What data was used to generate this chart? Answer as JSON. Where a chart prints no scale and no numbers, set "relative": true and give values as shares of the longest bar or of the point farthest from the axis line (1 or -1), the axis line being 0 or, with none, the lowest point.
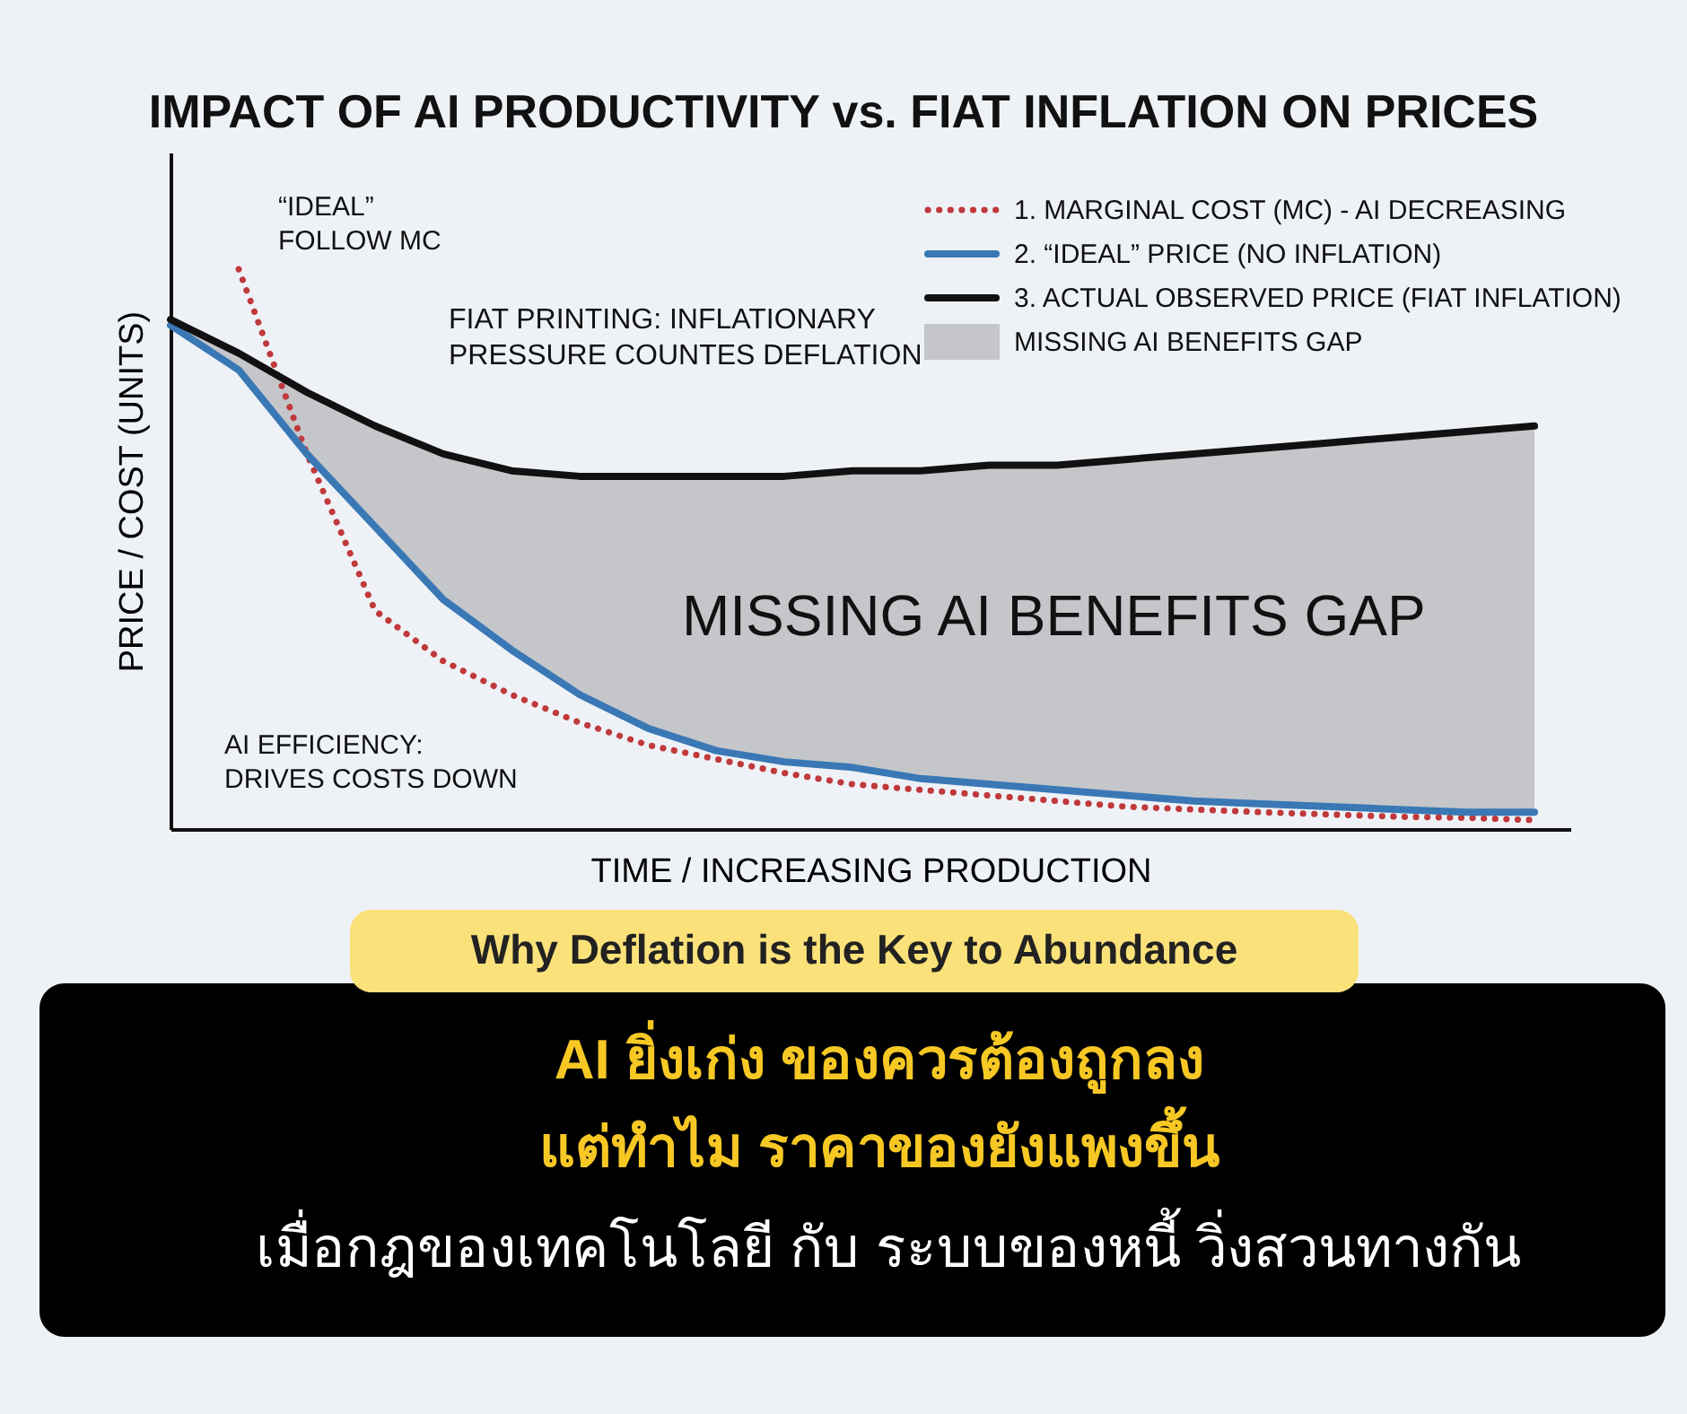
{
  "chart_data": {
    "type": "line",
    "relative": true,
    "title": "IMPACT OF AI PRODUCTIVITY vs. FIAT INFLATION ON PRICES",
    "subtitle": "Why Deflation is the Key to Abundance",
    "xlabel": "TIME / INCREASING PRODUCTION",
    "ylabel": "PRICE / COST (UNITS)",
    "categories": [
      null,
      null,
      null,
      null,
      null,
      null,
      null,
      null,
      null,
      null,
      null,
      null,
      null,
      null,
      null,
      null,
      null,
      null,
      null,
      null,
      null
    ],
    "legend": "top right",
    "grid": false,
    "marker": "none",
    "tick_labels": false,
    "series": [
      {
        "name": "1. MARGINAL COST (MC) - AI DECREASING",
        "color": "#c0393b",
        "line_style": "dotted",
        "values": [
          null,
          1.0,
          0.67,
          0.39,
          0.3,
          0.24,
          0.19,
          0.15,
          0.125,
          0.1,
          0.08,
          0.07,
          0.06,
          0.05,
          0.04,
          0.035,
          0.03,
          0.026,
          0.022,
          0.02,
          0.016
        ]
      },
      {
        "name": "2. “IDEAL” PRICE (NO INFLATION)",
        "color": "#3a78b5",
        "line_style": "solid",
        "values": [
          0.9,
          0.82,
          0.67,
          0.54,
          0.41,
          0.32,
          0.24,
          0.18,
          0.14,
          0.12,
          0.11,
          0.09,
          0.08,
          0.07,
          0.06,
          0.05,
          0.045,
          0.04,
          0.035,
          0.03,
          0.03
        ]
      },
      {
        "name": "3. ACTUAL OBSERVED PRICE (FIAT INFLATION)",
        "color": "#111111",
        "line_style": "solid",
        "values": [
          0.91,
          0.85,
          0.78,
          0.72,
          0.67,
          0.64,
          0.63,
          0.63,
          0.63,
          0.63,
          0.64,
          0.64,
          0.65,
          0.65,
          0.66,
          0.67,
          0.68,
          0.69,
          0.7,
          0.71,
          0.72
        ],
        "lower": [
          0.9,
          0.82,
          0.67,
          0.54,
          0.41,
          0.32,
          0.24,
          0.18,
          0.14,
          0.12,
          0.11,
          0.09,
          0.08,
          0.07,
          0.06,
          0.05,
          0.045,
          0.04,
          0.035,
          0.03,
          0.03
        ],
        "upper": [
          0.91,
          0.85,
          0.78,
          0.72,
          0.67,
          0.64,
          0.63,
          0.63,
          0.63,
          0.63,
          0.64,
          0.64,
          0.65,
          0.65,
          0.66,
          0.67,
          0.68,
          0.69,
          0.7,
          0.71,
          0.72
        ]
      },
      {
        "type": "area",
        "name": "MISSING AI BENEFITS GAP",
        "color": "#c4c6ca",
        "values": [
          null,
          null,
          null,
          null,
          null,
          null,
          null,
          null,
          null,
          null,
          null,
          null,
          null,
          null,
          null,
          null,
          null,
          null,
          null,
          null,
          null
        ]
      }
    ],
    "annotations": [
      "“IDEAL”\nFOLLOW MC",
      "FIAT PRINTING: INFLATIONARY\nPRESSURE COUNTES DEFLATION",
      "AI EFFICIENCY:\nDRIVES COSTS DOWN",
      "MISSING AI BENEFITS GAP",
      "AI ยิ่งเก่ง ของควรต้องถูกลง",
      "แต่ทำไม ราคาของยังแพงขึ้น",
      "เมื่อกฎของเทคโนโลยี กับ ระบบของหนี้ วิ่งสวนทางกัน"
    ]
  }
}
